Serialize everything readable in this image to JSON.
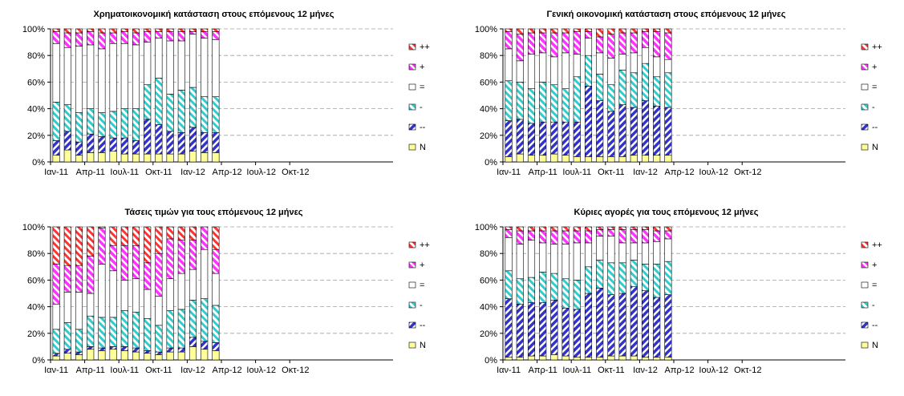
{
  "legend_labels": [
    "++",
    "+",
    "=",
    "-",
    "--",
    "N"
  ],
  "colors": {
    "N": "#ffff99",
    "--": "#3333cc",
    "-": "#33cccc",
    "=": "#ffffff",
    "+": "#ff33ff",
    "++": "#ff3333"
  },
  "chart_data": [
    {
      "type": "bar",
      "stacked": true,
      "percent": true,
      "title": "Χρηματοικονομική κατάσταση στους επόμενους 12 μήνες",
      "x": [
        "Ιαν-11",
        "Φεβ-11",
        "Μαρ-11",
        "Απρ-11",
        "Μαϊ-11",
        "Ιουν-11",
        "Ιουλ-11",
        "Αυγ-11",
        "Σεπ-11",
        "Οκτ-11",
        "Νοε-11",
        "Δεκ-11",
        "Ιαν-12",
        "Φεβ-12",
        "Μαρ-12"
      ],
      "xticks": [
        "Ιαν-11",
        "Απρ-11",
        "Ιουλ-11",
        "Οκτ-11",
        "Ιαν-12",
        "Απρ-12",
        "Ιουλ-12",
        "Οκτ-12"
      ],
      "yticks": [
        "0%",
        "20%",
        "40%",
        "60%",
        "80%",
        "100%"
      ],
      "ylim": [
        0,
        100
      ],
      "legend": [
        "++",
        "+",
        "=",
        "-",
        "--",
        "N"
      ],
      "series": [
        {
          "name": "N",
          "values": [
            5,
            9,
            5,
            7,
            7,
            8,
            6,
            6,
            6,
            6,
            6,
            6,
            8,
            7,
            7
          ]
        },
        {
          "name": "--",
          "values": [
            11,
            14,
            10,
            14,
            12,
            10,
            12,
            10,
            26,
            22,
            17,
            16,
            18,
            15,
            15
          ]
        },
        {
          "name": "-",
          "values": [
            29,
            20,
            22,
            19,
            18,
            20,
            22,
            24,
            26,
            35,
            28,
            32,
            30,
            27,
            27
          ]
        },
        {
          "name": "=",
          "values": [
            44,
            43,
            50,
            48,
            48,
            51,
            49,
            48,
            32,
            30,
            40,
            37,
            40,
            44,
            43
          ]
        },
        {
          "name": "+",
          "values": [
            9,
            11,
            10,
            10,
            12,
            8,
            9,
            9,
            8,
            5,
            7,
            7,
            2,
            5,
            6
          ]
        },
        {
          "name": "++",
          "values": [
            2,
            3,
            3,
            2,
            3,
            3,
            2,
            3,
            2,
            2,
            2,
            2,
            2,
            2,
            2
          ]
        }
      ]
    },
    {
      "type": "bar",
      "stacked": true,
      "percent": true,
      "title": "Γενική οικονομική κατάσταση στους επόμενους 12 μήνες",
      "x": [
        "Ιαν-11",
        "Φεβ-11",
        "Μαρ-11",
        "Απρ-11",
        "Μαϊ-11",
        "Ιουν-11",
        "Ιουλ-11",
        "Αυγ-11",
        "Σεπ-11",
        "Οκτ-11",
        "Νοε-11",
        "Δεκ-11",
        "Ιαν-12",
        "Φεβ-12",
        "Μαρ-12"
      ],
      "xticks": [
        "Ιαν-11",
        "Απρ-11",
        "Ιουλ-11",
        "Οκτ-11",
        "Ιαν-12",
        "Απρ-12",
        "Ιουλ-12",
        "Οκτ-12"
      ],
      "yticks": [
        "0%",
        "20%",
        "40%",
        "60%",
        "80%",
        "100%"
      ],
      "ylim": [
        0,
        100
      ],
      "legend": [
        "++",
        "+",
        "=",
        "-",
        "--",
        "N"
      ],
      "series": [
        {
          "name": "N",
          "values": [
            4,
            6,
            5,
            5,
            6,
            5,
            4,
            4,
            4,
            4,
            4,
            5,
            5,
            5,
            5
          ]
        },
        {
          "name": "--",
          "values": [
            27,
            26,
            24,
            25,
            24,
            25,
            26,
            53,
            42,
            34,
            39,
            36,
            41,
            37,
            36
          ]
        },
        {
          "name": "-",
          "values": [
            30,
            28,
            26,
            30,
            28,
            25,
            34,
            23,
            20,
            20,
            26,
            26,
            28,
            22,
            26
          ]
        },
        {
          "name": "=",
          "values": [
            24,
            16,
            26,
            22,
            21,
            27,
            17,
            13,
            16,
            20,
            12,
            15,
            12,
            15,
            10
          ]
        },
        {
          "name": "+",
          "values": [
            13,
            20,
            16,
            15,
            18,
            15,
            17,
            5,
            12,
            18,
            16,
            15,
            12,
            19,
            20
          ]
        },
        {
          "name": "++",
          "values": [
            2,
            4,
            3,
            3,
            3,
            3,
            2,
            2,
            6,
            4,
            3,
            3,
            2,
            2,
            3
          ]
        }
      ]
    },
    {
      "type": "bar",
      "stacked": true,
      "percent": true,
      "title": "Τάσεις τιμών για τους επόμενους 12 μήνες",
      "x": [
        "Ιαν-11",
        "Φεβ-11",
        "Μαρ-11",
        "Απρ-11",
        "Μαϊ-11",
        "Ιουν-11",
        "Ιουλ-11",
        "Αυγ-11",
        "Σεπ-11",
        "Οκτ-11",
        "Νοε-11",
        "Δεκ-11",
        "Ιαν-12",
        "Φεβ-12",
        "Μαρ-12"
      ],
      "xticks": [
        "Ιαν-11",
        "Απρ-11",
        "Ιουλ-11",
        "Οκτ-11",
        "Ιαν-12",
        "Απρ-12",
        "Ιουλ-12",
        "Οκτ-12"
      ],
      "yticks": [
        "0%",
        "20%",
        "40%",
        "60%",
        "80%",
        "100%"
      ],
      "ylim": [
        0,
        100
      ],
      "legend": [
        "++",
        "+",
        "=",
        "-",
        "--",
        "N"
      ],
      "series": [
        {
          "name": "N",
          "values": [
            3,
            5,
            4,
            8,
            7,
            8,
            7,
            6,
            5,
            4,
            6,
            6,
            10,
            8,
            7
          ]
        },
        {
          "name": "--",
          "values": [
            2,
            3,
            2,
            2,
            2,
            2,
            3,
            3,
            2,
            2,
            3,
            3,
            7,
            6,
            6
          ]
        },
        {
          "name": "-",
          "values": [
            18,
            20,
            17,
            23,
            23,
            22,
            27,
            27,
            24,
            20,
            28,
            29,
            28,
            32,
            28
          ]
        },
        {
          "name": "=",
          "values": [
            19,
            23,
            28,
            17,
            40,
            35,
            23,
            25,
            22,
            22,
            24,
            27,
            23,
            37,
            24
          ]
        },
        {
          "name": "+",
          "values": [
            30,
            20,
            20,
            28,
            27,
            19,
            26,
            25,
            20,
            32,
            30,
            25,
            22,
            17,
            18
          ]
        },
        {
          "name": "++",
          "values": [
            28,
            29,
            29,
            22,
            1,
            14,
            14,
            14,
            27,
            20,
            9,
            10,
            10,
            0,
            17
          ]
        }
      ]
    },
    {
      "type": "bar",
      "stacked": true,
      "percent": true,
      "title": "Κύριες αγορές για τους επόμενους 12 μήνες",
      "x": [
        "Ιαν-11",
        "Φεβ-11",
        "Μαρ-11",
        "Απρ-11",
        "Μαϊ-11",
        "Ιουν-11",
        "Ιουλ-11",
        "Αυγ-11",
        "Σεπ-11",
        "Οκτ-11",
        "Νοε-11",
        "Δεκ-11",
        "Ιαν-12",
        "Φεβ-12",
        "Μαρ-12"
      ],
      "xticks": [
        "Ιαν-11",
        "Απρ-11",
        "Ιουλ-11",
        "Οκτ-11",
        "Ιαν-12",
        "Απρ-12",
        "Ιουλ-12",
        "Οκτ-12"
      ],
      "yticks": [
        "0%",
        "20%",
        "40%",
        "60%",
        "80%",
        "100%"
      ],
      "ylim": [
        0,
        100
      ],
      "legend": [
        "++",
        "+",
        "=",
        "-",
        "--",
        "N"
      ],
      "series": [
        {
          "name": "N",
          "values": [
            2,
            2,
            3,
            3,
            4,
            3,
            2,
            2,
            2,
            3,
            3,
            3,
            2,
            2,
            2
          ]
        },
        {
          "name": "--",
          "values": [
            44,
            40,
            40,
            40,
            41,
            36,
            36,
            48,
            52,
            46,
            47,
            52,
            50,
            45,
            47
          ]
        },
        {
          "name": "-",
          "values": [
            21,
            19,
            19,
            23,
            20,
            22,
            22,
            20,
            21,
            24,
            23,
            20,
            20,
            25,
            25
          ]
        },
        {
          "name": "=",
          "values": [
            25,
            26,
            28,
            22,
            22,
            26,
            28,
            18,
            18,
            20,
            15,
            13,
            16,
            17,
            17
          ]
        },
        {
          "name": "+",
          "values": [
            6,
            10,
            7,
            9,
            10,
            10,
            9,
            9,
            5,
            5,
            10,
            10,
            10,
            8,
            6
          ]
        },
        {
          "name": "++",
          "values": [
            2,
            3,
            3,
            3,
            3,
            3,
            3,
            3,
            2,
            2,
            2,
            2,
            2,
            3,
            3
          ]
        }
      ]
    }
  ]
}
